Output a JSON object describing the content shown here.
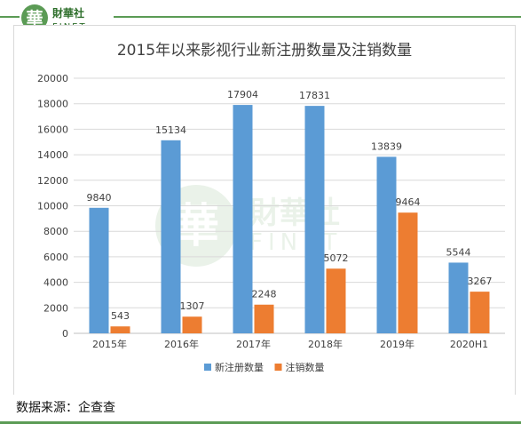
{
  "brand": {
    "name_cn": "財華社",
    "name_en": "FINET",
    "glyph": "華",
    "color": "#5b9b55"
  },
  "source_text": "数据来源：企查查",
  "chart_data": {
    "type": "bar",
    "title": "2015年以来影视行业新注册数量及注销数量",
    "categories": [
      "2015年",
      "2016年",
      "2017年",
      "2018年",
      "2019年",
      "2020H1"
    ],
    "series": [
      {
        "name": "新注册数量",
        "color": "#5b9bd5",
        "values": [
          9840,
          15134,
          17904,
          17831,
          13839,
          5544
        ]
      },
      {
        "name": "注销数量",
        "color": "#ed7d31",
        "values": [
          543,
          1307,
          2248,
          5072,
          9464,
          3267
        ]
      }
    ],
    "ylim": [
      0,
      20000
    ],
    "yticks": [
      0,
      2000,
      4000,
      6000,
      8000,
      10000,
      12000,
      14000,
      16000,
      18000,
      20000
    ],
    "grid": true,
    "legend_position": "bottom",
    "data_labels": true
  }
}
